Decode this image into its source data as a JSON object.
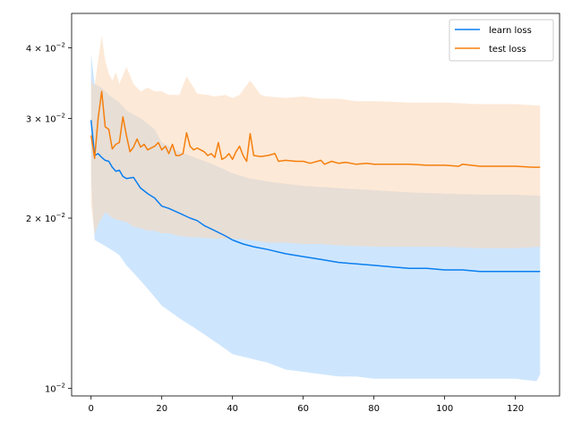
{
  "chart_data": {
    "type": "line",
    "title": "",
    "xlabel": "",
    "ylabel": "",
    "xlim": [
      -5.5,
      132.5
    ],
    "ylim": [
      0.0097,
      0.046
    ],
    "yscale": "log",
    "grid": false,
    "legend_position": "top-right",
    "x_ticks": [
      0,
      20,
      40,
      60,
      80,
      100,
      120
    ],
    "x_tick_labels": [
      "0",
      "20",
      "40",
      "60",
      "80",
      "100",
      "120"
    ],
    "y_ticks": [
      0.01,
      0.02,
      0.03,
      0.04
    ],
    "y_tick_labels": [
      {
        "base": "10",
        "exp": "−2",
        "mant": ""
      },
      {
        "base": "10",
        "exp": "−2",
        "mant": "2 × "
      },
      {
        "base": "10",
        "exp": "−2",
        "mant": "3 × "
      },
      {
        "base": "10",
        "exp": "−2",
        "mant": "4 × "
      }
    ],
    "series": [
      {
        "name": "learn loss",
        "color": "#0a7ef0",
        "band_color": "#a6d1fb",
        "mean": [
          [
            0,
            0.0298
          ],
          [
            1,
            0.0258
          ],
          [
            2,
            0.026
          ],
          [
            3,
            0.0256
          ],
          [
            4,
            0.0253
          ],
          [
            5,
            0.0252
          ],
          [
            6,
            0.0246
          ],
          [
            7,
            0.0242
          ],
          [
            8,
            0.0243
          ],
          [
            9,
            0.0237
          ],
          [
            10,
            0.0235
          ],
          [
            12,
            0.0236
          ],
          [
            14,
            0.0226
          ],
          [
            16,
            0.0221
          ],
          [
            18,
            0.0217
          ],
          [
            20,
            0.021
          ],
          [
            22,
            0.0208
          ],
          [
            25,
            0.0204
          ],
          [
            28,
            0.02
          ],
          [
            30,
            0.0198
          ],
          [
            32,
            0.0194
          ],
          [
            35,
            0.019
          ],
          [
            38,
            0.0186
          ],
          [
            40,
            0.0183
          ],
          [
            43,
            0.018
          ],
          [
            46,
            0.0178
          ],
          [
            50,
            0.0176
          ],
          [
            55,
            0.0173
          ],
          [
            60,
            0.0171
          ],
          [
            65,
            0.0169
          ],
          [
            70,
            0.0167
          ],
          [
            75,
            0.0166
          ],
          [
            80,
            0.0165
          ],
          [
            85,
            0.0164
          ],
          [
            90,
            0.0163
          ],
          [
            95,
            0.0163
          ],
          [
            100,
            0.0162
          ],
          [
            105,
            0.0162
          ],
          [
            110,
            0.0161
          ],
          [
            115,
            0.0161
          ],
          [
            120,
            0.0161
          ],
          [
            127,
            0.0161
          ]
        ],
        "upper": [
          [
            0,
            0.039
          ],
          [
            1,
            0.0345
          ],
          [
            3,
            0.034
          ],
          [
            5,
            0.033
          ],
          [
            8,
            0.032
          ],
          [
            10,
            0.031
          ],
          [
            14,
            0.03
          ],
          [
            18,
            0.0287
          ],
          [
            20,
            0.0272
          ],
          [
            25,
            0.0262
          ],
          [
            30,
            0.0255
          ],
          [
            35,
            0.0248
          ],
          [
            40,
            0.024
          ],
          [
            45,
            0.0235
          ],
          [
            50,
            0.0232
          ],
          [
            55,
            0.023
          ],
          [
            60,
            0.0228
          ],
          [
            70,
            0.0226
          ],
          [
            80,
            0.0224
          ],
          [
            90,
            0.0222
          ],
          [
            100,
            0.0221
          ],
          [
            110,
            0.022
          ],
          [
            120,
            0.022
          ],
          [
            127,
            0.0219
          ]
        ],
        "lower": [
          [
            0,
            0.0235
          ],
          [
            1,
            0.0183
          ],
          [
            3,
            0.018
          ],
          [
            5,
            0.0177
          ],
          [
            8,
            0.0172
          ],
          [
            10,
            0.0165
          ],
          [
            14,
            0.0155
          ],
          [
            18,
            0.0145
          ],
          [
            20,
            0.014
          ],
          [
            25,
            0.0133
          ],
          [
            30,
            0.0127
          ],
          [
            35,
            0.0121
          ],
          [
            40,
            0.0115
          ],
          [
            45,
            0.0113
          ],
          [
            50,
            0.0111
          ],
          [
            55,
            0.0108
          ],
          [
            60,
            0.0107
          ],
          [
            65,
            0.0106
          ],
          [
            70,
            0.0105
          ],
          [
            75,
            0.0105
          ],
          [
            80,
            0.0104
          ],
          [
            90,
            0.0104
          ],
          [
            100,
            0.0104
          ],
          [
            110,
            0.0104
          ],
          [
            120,
            0.0104
          ],
          [
            126,
            0.0103
          ],
          [
            127,
            0.0106
          ]
        ]
      },
      {
        "name": "test loss",
        "color": "#f57f0c",
        "band_color": "#fbd7b6",
        "mean": [
          [
            0,
            0.028
          ],
          [
            1,
            0.0255
          ],
          [
            2,
            0.03
          ],
          [
            3,
            0.0335
          ],
          [
            4,
            0.029
          ],
          [
            5,
            0.0287
          ],
          [
            6,
            0.0265
          ],
          [
            7,
            0.027
          ],
          [
            8,
            0.0272
          ],
          [
            9,
            0.0302
          ],
          [
            10,
            0.028
          ],
          [
            11,
            0.0262
          ],
          [
            12,
            0.0267
          ],
          [
            13,
            0.0276
          ],
          [
            14,
            0.0267
          ],
          [
            15,
            0.027
          ],
          [
            16,
            0.0264
          ],
          [
            17,
            0.0266
          ],
          [
            18,
            0.0268
          ],
          [
            19,
            0.0272
          ],
          [
            20,
            0.0264
          ],
          [
            21,
            0.0268
          ],
          [
            22,
            0.026
          ],
          [
            23,
            0.027
          ],
          [
            24,
            0.0258
          ],
          [
            25,
            0.0258
          ],
          [
            26,
            0.026
          ],
          [
            27,
            0.0283
          ],
          [
            28,
            0.0268
          ],
          [
            29,
            0.0264
          ],
          [
            30,
            0.0266
          ],
          [
            31,
            0.0264
          ],
          [
            32,
            0.0262
          ],
          [
            33,
            0.0258
          ],
          [
            34,
            0.026
          ],
          [
            35,
            0.0256
          ],
          [
            36,
            0.0272
          ],
          [
            37,
            0.0254
          ],
          [
            38,
            0.0256
          ],
          [
            39,
            0.026
          ],
          [
            40,
            0.0254
          ],
          [
            41,
            0.0262
          ],
          [
            42,
            0.0268
          ],
          [
            43,
            0.0258
          ],
          [
            44,
            0.0252
          ],
          [
            45,
            0.0282
          ],
          [
            46,
            0.0258
          ],
          [
            48,
            0.0257
          ],
          [
            50,
            0.0258
          ],
          [
            52,
            0.026
          ],
          [
            53,
            0.0252
          ],
          [
            55,
            0.0253
          ],
          [
            58,
            0.0252
          ],
          [
            60,
            0.0252
          ],
          [
            62,
            0.025
          ],
          [
            65,
            0.0253
          ],
          [
            66,
            0.0249
          ],
          [
            68,
            0.0252
          ],
          [
            70,
            0.025
          ],
          [
            72,
            0.0251
          ],
          [
            75,
            0.0249
          ],
          [
            78,
            0.025
          ],
          [
            80,
            0.0249
          ],
          [
            85,
            0.0249
          ],
          [
            90,
            0.0249
          ],
          [
            95,
            0.0248
          ],
          [
            100,
            0.0248
          ],
          [
            104,
            0.0247
          ],
          [
            105,
            0.0249
          ],
          [
            110,
            0.0247
          ],
          [
            115,
            0.0247
          ],
          [
            120,
            0.0247
          ],
          [
            125,
            0.0246
          ],
          [
            127,
            0.0246
          ]
        ],
        "upper": [
          [
            0,
            0.035
          ],
          [
            1,
            0.0342
          ],
          [
            2,
            0.038
          ],
          [
            3,
            0.042
          ],
          [
            4,
            0.038
          ],
          [
            5,
            0.036
          ],
          [
            6,
            0.035
          ],
          [
            7,
            0.0362
          ],
          [
            8,
            0.0345
          ],
          [
            10,
            0.037
          ],
          [
            12,
            0.0345
          ],
          [
            14,
            0.0335
          ],
          [
            16,
            0.034
          ],
          [
            18,
            0.0335
          ],
          [
            20,
            0.0335
          ],
          [
            22,
            0.033
          ],
          [
            25,
            0.033
          ],
          [
            27,
            0.0356
          ],
          [
            30,
            0.0332
          ],
          [
            33,
            0.033
          ],
          [
            35,
            0.0328
          ],
          [
            38,
            0.033
          ],
          [
            40,
            0.0326
          ],
          [
            42,
            0.033
          ],
          [
            45,
            0.035
          ],
          [
            48,
            0.033
          ],
          [
            50,
            0.0328
          ],
          [
            55,
            0.0326
          ],
          [
            60,
            0.0328
          ],
          [
            65,
            0.0325
          ],
          [
            70,
            0.0325
          ],
          [
            75,
            0.0322
          ],
          [
            80,
            0.0322
          ],
          [
            90,
            0.032
          ],
          [
            100,
            0.032
          ],
          [
            110,
            0.0318
          ],
          [
            120,
            0.0318
          ],
          [
            127,
            0.0316
          ]
        ],
        "lower": [
          [
            0,
            0.0212
          ],
          [
            1,
            0.0187
          ],
          [
            2,
            0.0195
          ],
          [
            4,
            0.0205
          ],
          [
            6,
            0.02
          ],
          [
            8,
            0.0198
          ],
          [
            10,
            0.0197
          ],
          [
            12,
            0.0193
          ],
          [
            14,
            0.0192
          ],
          [
            16,
            0.019
          ],
          [
            18,
            0.019
          ],
          [
            20,
            0.0188
          ],
          [
            22,
            0.0188
          ],
          [
            25,
            0.0186
          ],
          [
            28,
            0.0185
          ],
          [
            30,
            0.0185
          ],
          [
            35,
            0.0184
          ],
          [
            40,
            0.0184
          ],
          [
            45,
            0.0183
          ],
          [
            50,
            0.0181
          ],
          [
            55,
            0.0181
          ],
          [
            60,
            0.018
          ],
          [
            65,
            0.018
          ],
          [
            70,
            0.0179
          ],
          [
            80,
            0.0178
          ],
          [
            90,
            0.0178
          ],
          [
            100,
            0.0178
          ],
          [
            110,
            0.0177
          ],
          [
            120,
            0.0177
          ],
          [
            127,
            0.0178
          ]
        ]
      }
    ]
  }
}
